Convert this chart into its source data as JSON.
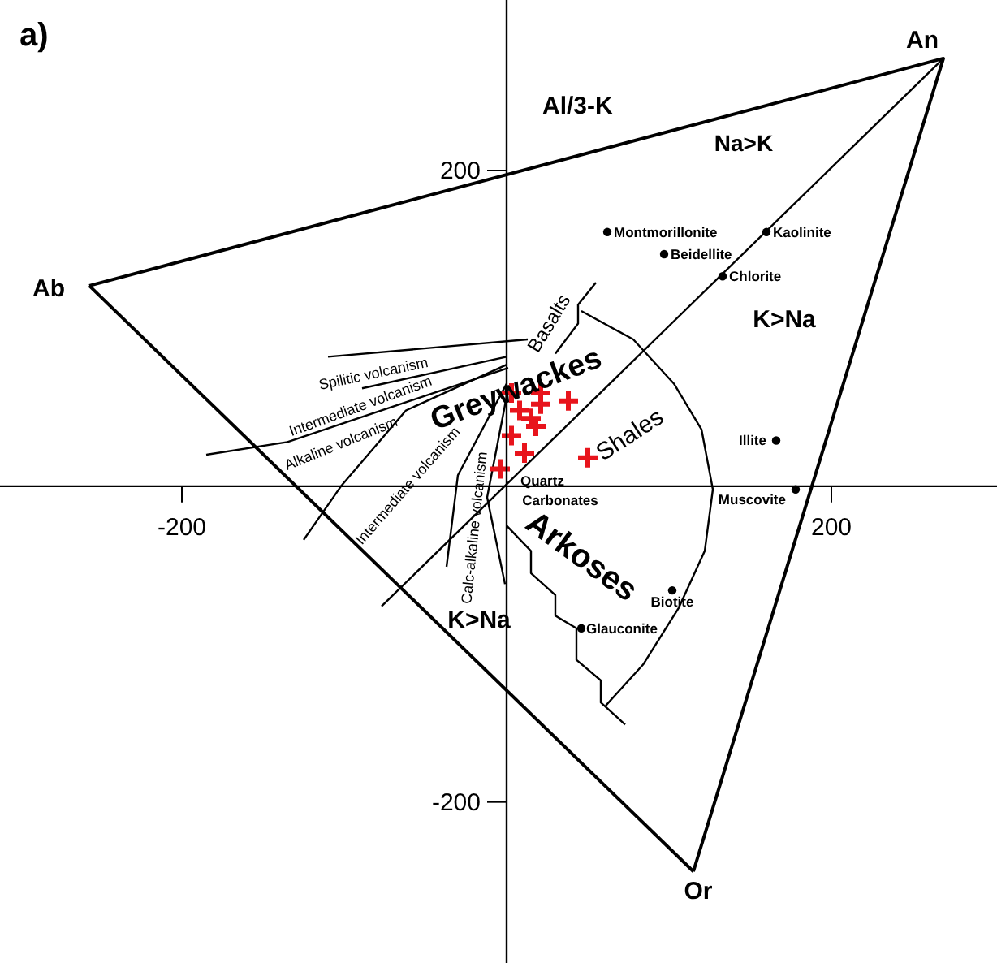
{
  "chart_data": {
    "type": "scatter",
    "title": "a)",
    "ylabel": "Al/3-K",
    "xlim": [
      -312,
      302
    ],
    "ylim": [
      -302,
      308
    ],
    "xticks": [
      -200,
      200
    ],
    "yticks": [
      -200,
      200
    ],
    "grid": false,
    "series": [
      {
        "type": "line",
        "color": "#000000",
        "x": [
          -257,
          269,
          115
        ],
        "values": [
          127,
          271,
          -244
        ]
      },
      {
        "type": "line",
        "color": "#000000",
        "x": [
          115,
          -257
        ],
        "values": [
          -244,
          127
        ]
      },
      {
        "type": "line",
        "color": "#000000",
        "x": [
          -77,
          269
        ],
        "values": [
          -76,
          271
        ]
      },
      {
        "type": "line",
        "color": "#000000",
        "x": [
          46,
          78,
          103,
          120,
          127,
          122,
          106,
          84,
          61
        ],
        "values": [
          111,
          93,
          65,
          36,
          -2,
          -41,
          -77,
          -113,
          -139
        ]
      },
      {
        "type": "line",
        "color": "#000000",
        "x": [
          55,
          44,
          44,
          30
        ],
        "values": [
          129,
          115,
          103,
          84
        ]
      },
      {
        "type": "line",
        "color": "#000000",
        "x": [
          -110,
          13
        ],
        "values": [
          82,
          93
        ]
      },
      {
        "type": "line",
        "color": "#000000",
        "x": [
          -89,
          0
        ],
        "values": [
          62,
          82
        ]
      },
      {
        "type": "line",
        "color": "#000000",
        "x": [
          -185,
          -135,
          1
        ],
        "values": [
          20,
          28,
          75
        ]
      },
      {
        "type": "line",
        "color": "#000000",
        "x": [
          -125,
          -102,
          -62,
          0
        ],
        "values": [
          -34,
          0,
          48,
          77
        ]
      },
      {
        "type": "line",
        "color": "#000000",
        "x": [
          -37,
          -30,
          0
        ],
        "values": [
          -51,
          7,
          65
        ]
      },
      {
        "type": "line",
        "color": "#000000",
        "x": [
          -1,
          -12,
          1
        ],
        "values": [
          -62,
          -7,
          62
        ]
      },
      {
        "type": "line",
        "color": "#000000",
        "x": [
          0,
          15,
          15,
          30,
          30,
          43,
          43,
          58,
          58,
          73
        ],
        "values": [
          -25,
          -41,
          -55,
          -69,
          -82,
          -90,
          -110,
          -123,
          -137,
          -151
        ]
      },
      {
        "type": "scatter",
        "color": "#000000",
        "marker": "circle",
        "x": [
          62,
          97,
          160,
          133,
          166,
          178,
          102,
          46
        ],
        "values": [
          161,
          147,
          161,
          133,
          29,
          -2,
          -66,
          -90
        ],
        "value_labels": [
          "Montmorillonite",
          "Beidellite",
          "Kaolinite",
          "Chlorite",
          "Illite",
          "Muscovite",
          "Biotite",
          "Glauconite"
        ]
      },
      {
        "type": "scatter",
        "color": "#e8141c",
        "marker": "cross",
        "x": [
          3,
          21,
          38,
          8,
          21,
          15,
          18,
          3,
          11,
          -4,
          50
        ],
        "values": [
          59,
          59,
          54,
          48,
          52,
          43,
          38,
          32,
          21,
          11,
          18
        ]
      }
    ],
    "annotations": [
      "Ab",
      "An",
      "Or",
      "Na>K",
      "K>Na",
      "K>Na",
      "Greywackes",
      "Basalts",
      "Shales",
      "Arkoses",
      "Quartz",
      "Carbonates",
      "Spilitic volcanism",
      "Intermediate volcanism",
      "Alkaline volcanism",
      "Intermediate volcanism",
      "Calc-alkaline volcanism"
    ]
  }
}
